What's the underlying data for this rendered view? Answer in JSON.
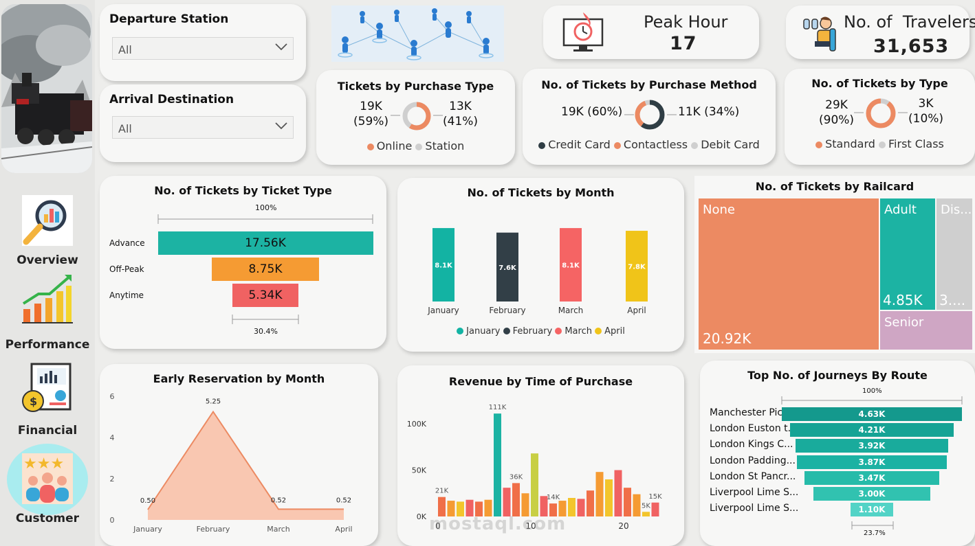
{
  "filters": {
    "departure": {
      "label": "Departure Station",
      "value": "All"
    },
    "arrival": {
      "label": "Arrival Destination",
      "value": "All"
    }
  },
  "nav": {
    "items": [
      {
        "label": "Overview",
        "icon": "magnifier-chart-icon"
      },
      {
        "label": "Performance",
        "icon": "growth-chart-icon"
      },
      {
        "label": "Financial",
        "icon": "money-report-icon"
      },
      {
        "label": "Customer",
        "icon": "customer-rating-icon"
      }
    ]
  },
  "kpis": {
    "peak_hour": {
      "title": "Peak Hour",
      "value": "17",
      "icon": "clock-monitor-icon"
    },
    "travelers": {
      "title": "No. of  Travelers",
      "value": "31,653",
      "icon": "passenger-seat-icon"
    }
  },
  "purchase_type": {
    "title": "Tickets by Purchase Type",
    "left_value": "19K",
    "left_pct": "(59%)",
    "right_value": "13K",
    "right_pct": "(41%)",
    "legend": [
      {
        "label": "Online",
        "color": "#ec8a62"
      },
      {
        "label": "Station",
        "color": "#cfcfcf"
      }
    ]
  },
  "purchase_method": {
    "title": "No. of Tickets by Purchase Method",
    "left": "19K (60%)",
    "right": "11K (34%)",
    "legend": [
      {
        "label": "Credit Card",
        "color": "#2f3d44"
      },
      {
        "label": "Contactless",
        "color": "#ec8a62"
      },
      {
        "label": "Debit Card",
        "color": "#cfcfcf"
      }
    ]
  },
  "ticket_class": {
    "title": "No. of Tickets by Type",
    "left_value": "29K",
    "left_pct": "(90%)",
    "right_value": "3K",
    "right_pct": "(10%)",
    "legend": [
      {
        "label": "Standard",
        "color": "#ec8a62"
      },
      {
        "label": "First Class",
        "color": "#cfcfcf"
      }
    ]
  },
  "ticket_type_funnel": {
    "title": "No. of Tickets by Ticket Type",
    "top_pct": "100%",
    "bottom_pct": "30.4%",
    "rows": [
      {
        "label": "Advance",
        "value": "17.56K",
        "raw": 17.56,
        "color": "#1cb3a3"
      },
      {
        "label": "Off-Peak",
        "value": "8.75K",
        "raw": 8.75,
        "color": "#f59b33"
      },
      {
        "label": "Anytime",
        "value": "5.34K",
        "raw": 5.34,
        "color": "#f06262"
      }
    ]
  },
  "chart_data": [
    {
      "type": "bar",
      "title": "No. of Tickets by Month",
      "categories": [
        "January",
        "February",
        "March",
        "April"
      ],
      "values": [
        8.1,
        7.6,
        8.1,
        7.8
      ],
      "labels": [
        "8.1K",
        "7.6K",
        "8.1K",
        "7.8K"
      ],
      "colors": [
        "#13b3a3",
        "#323f47",
        "#f56464",
        "#f0c419"
      ]
    },
    {
      "type": "area",
      "title": "Early Reservation by Month",
      "categories": [
        "January",
        "February",
        "March",
        "April"
      ],
      "values": [
        0.5,
        5.25,
        0.52,
        0.52
      ],
      "labels": [
        "0.50",
        "5.25",
        "0.52",
        "0.52"
      ],
      "yticks": [
        "0",
        "2",
        "4",
        "6"
      ],
      "ylim": [
        0,
        6
      ]
    },
    {
      "type": "bar",
      "title": "Revenue by Time of Purchase",
      "x": [
        0,
        1,
        2,
        3,
        4,
        5,
        6,
        7,
        8,
        9,
        10,
        11,
        12,
        13,
        14,
        15,
        16,
        17,
        18,
        19,
        20,
        21,
        22,
        23
      ],
      "values": [
        21,
        17,
        16,
        18,
        16,
        18,
        111,
        31,
        36,
        25,
        68,
        22,
        14,
        17,
        20,
        19,
        28,
        48,
        40,
        50,
        31,
        24,
        5,
        15
      ],
      "yticks": [
        "0K",
        "50K",
        "100K"
      ],
      "xticks": [
        "0",
        "10",
        "20"
      ],
      "point_labels": [
        {
          "i": 0,
          "text": "21K"
        },
        {
          "i": 6,
          "text": "111K"
        },
        {
          "i": 8,
          "text": "36K"
        },
        {
          "i": 12,
          "text": "14K"
        },
        {
          "i": 22,
          "text": "5K"
        },
        {
          "i": 23,
          "text": "15K"
        }
      ],
      "ylim": [
        0,
        120
      ]
    },
    {
      "type": "bar",
      "title": "Top No. of Journeys By Route",
      "top_pct": "100%",
      "bottom_pct": "23.7%",
      "categories": [
        "Manchester Picc...",
        "London Euston t...",
        "London Kings C...",
        "London Padding...",
        "London St Pancr...",
        "Liverpool Lime S...",
        "Liverpool Lime S..."
      ],
      "values": [
        4.63,
        4.21,
        3.92,
        3.87,
        3.47,
        3.0,
        1.1
      ],
      "labels": [
        "4.63K",
        "4.21K",
        "3.92K",
        "3.87K",
        "3.47K",
        "3.00K",
        "1.10K"
      ]
    }
  ],
  "railcard": {
    "title": "No. of Tickets by Railcard",
    "cells": [
      {
        "name": "None",
        "value": "20.92K",
        "color": "#ec8a62"
      },
      {
        "name": "Adult",
        "value": "4.85K",
        "color": "#1cb3a3"
      },
      {
        "name": "Dis...",
        "value": "3....",
        "color": "#cfcfcf"
      },
      {
        "name": "Senior",
        "value": "",
        "color": "#cfa6c4"
      }
    ]
  },
  "watermark": "mostaql.com"
}
